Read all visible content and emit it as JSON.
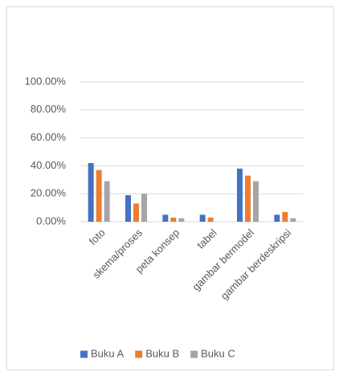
{
  "chart_data": {
    "type": "bar",
    "categories": [
      "foto",
      "skema/proses",
      "peta konsep",
      "tabel",
      "gambar bermodel",
      "gambar berdeskripsi"
    ],
    "series": [
      {
        "name": "Buku A",
        "color": "#4472c4",
        "values": [
          42,
          19,
          5,
          5,
          38,
          5
        ]
      },
      {
        "name": "Buku B",
        "color": "#ed7d31",
        "values": [
          37,
          13,
          3,
          3,
          33,
          7
        ]
      },
      {
        "name": "Buku C",
        "color": "#a5a5a5",
        "values": [
          29,
          20,
          2.5,
          0,
          29,
          2.5
        ]
      }
    ],
    "ylim": [
      0,
      100
    ],
    "yticks": [
      {
        "value": 0,
        "label": "0.00%"
      },
      {
        "value": 20,
        "label": "20.00%"
      },
      {
        "value": 40,
        "label": "40.00%"
      },
      {
        "value": 60,
        "label": "60.00%"
      },
      {
        "value": 80,
        "label": "80.00%"
      },
      {
        "value": 100,
        "label": "100.00%"
      }
    ],
    "grid": true,
    "legend": "bottom"
  }
}
